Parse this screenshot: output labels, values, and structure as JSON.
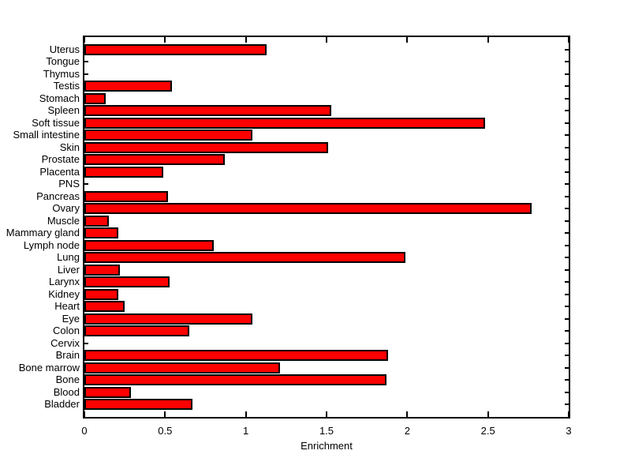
{
  "figure": {
    "background": "#FFFFFF",
    "axis_color": "#000000",
    "text_color": "#000000"
  },
  "chart_data": {
    "type": "bar",
    "orientation": "horizontal",
    "title": "",
    "xlabel": "Enrichment",
    "ylabel": "",
    "xlim": [
      0,
      3
    ],
    "xticks": [
      0,
      0.5,
      1,
      1.5,
      2,
      2.5,
      3
    ],
    "xtick_labels": [
      "0",
      "0.5",
      "1",
      "1.5",
      "2",
      "2.5",
      "3"
    ],
    "grid": false,
    "legend": "none",
    "bar_color": "#FF0000",
    "bar_edge_color": "#000000",
    "categories": [
      "Uterus",
      "Tongue",
      "Thymus",
      "Testis",
      "Stomach",
      "Spleen",
      "Soft tissue",
      "Small intestine",
      "Skin",
      "Prostate",
      "Placenta",
      "PNS",
      "Pancreas",
      "Ovary",
      "Muscle",
      "Mammary gland",
      "Lymph node",
      "Lung",
      "Liver",
      "Larynx",
      "Kidney",
      "Heart",
      "Eye",
      "Colon",
      "Cervix",
      "Brain",
      "Bone marrow",
      "Bone",
      "Blood",
      "Bladder"
    ],
    "values": [
      1.13,
      0,
      0,
      0.54,
      0.13,
      1.53,
      2.48,
      1.04,
      1.51,
      0.87,
      0.49,
      0,
      0.52,
      2.77,
      0.15,
      0.21,
      0.8,
      1.99,
      0.22,
      0.53,
      0.21,
      0.25,
      1.04,
      0.65,
      0,
      1.88,
      1.21,
      1.87,
      0.29,
      0.67
    ]
  }
}
